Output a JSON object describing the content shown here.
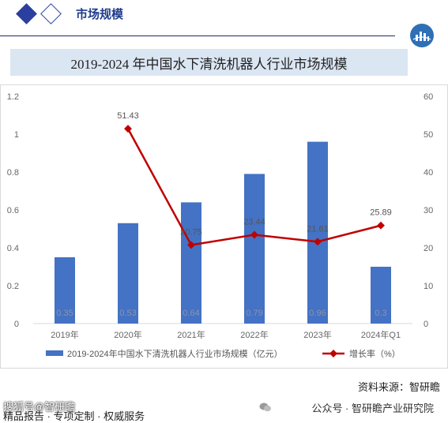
{
  "header": {
    "section_title": "市场规模"
  },
  "title": "2019-2024 年中国水下清洗机器人行业市场规模",
  "source": "资料来源：智研瞻",
  "watermark": {
    "top_left": "搜狐号@智研瞻",
    "bottom_left": "精品报告 · 专项定制 · 权威服务",
    "right": "公众号 · 智研瞻产业研究院"
  },
  "colors": {
    "bar": "#4472c4",
    "line": "#c00000",
    "brand": "#1f3c8f"
  },
  "chart_data": {
    "type": "bar",
    "categories": [
      "2019年",
      "2020年",
      "2021年",
      "2022年",
      "2023年",
      "2024年Q1"
    ],
    "series": [
      {
        "name": "2019-2024年中国水下清洗机器人行业市场规模（亿元）",
        "type": "bar",
        "axis": "left",
        "values": [
          0.35,
          0.53,
          0.64,
          0.79,
          0.96,
          0.3
        ],
        "labels": [
          "0.35",
          "0.53",
          "0.64",
          "0.79",
          "0.96",
          "0.3"
        ]
      },
      {
        "name": "增长率（%）",
        "type": "line",
        "axis": "right",
        "values": [
          null,
          51.43,
          20.75,
          23.44,
          21.61,
          25.89
        ],
        "labels": [
          "",
          "51.43",
          "20.75",
          "23.44",
          "21.61",
          "25.89"
        ]
      }
    ],
    "ylim": [
      0,
      1.2
    ],
    "yticks": [
      "0",
      "0.2",
      "0.4",
      "0.6",
      "0.8",
      "1",
      "1.2"
    ],
    "y2lim": [
      0,
      60
    ],
    "y2ticks": [
      "0",
      "10",
      "20",
      "30",
      "40",
      "50",
      "60"
    ],
    "grid": false,
    "legend": "bottom"
  }
}
